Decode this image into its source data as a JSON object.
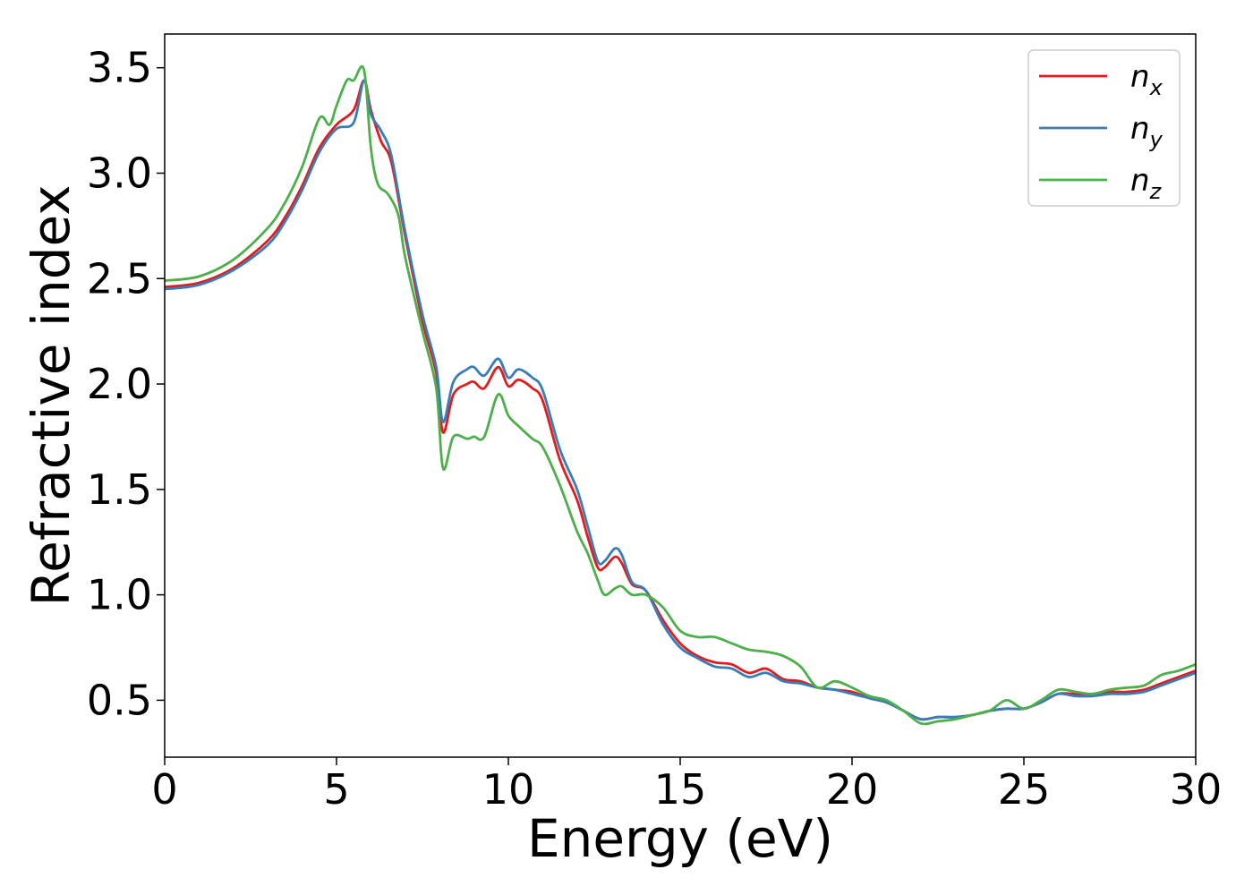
{
  "chart_data": {
    "type": "line",
    "title": "",
    "xlabel": "Energy (eV)",
    "ylabel": "Refractive index",
    "xlim": [
      0,
      30
    ],
    "ylim": [
      0.23,
      3.66
    ],
    "xticks": [
      0,
      5,
      10,
      15,
      20,
      25,
      30
    ],
    "xtick_labels": [
      "0",
      "5",
      "10",
      "15",
      "20",
      "25",
      "30"
    ],
    "yticks": [
      0.5,
      1.0,
      1.5,
      2.0,
      2.5,
      3.0,
      3.5
    ],
    "ytick_labels": [
      "0.5",
      "1.0",
      "1.5",
      "2.0",
      "2.5",
      "3.0",
      "3.5"
    ],
    "grid": false,
    "legend": {
      "placement": "top-right"
    },
    "series": [
      {
        "name": "n_x",
        "label_main": "n",
        "label_sub": "x",
        "color": "#e41a1c",
        "x": [
          0,
          1,
          2,
          3,
          3.5,
          4,
          4.5,
          5,
          5.5,
          5.8,
          6.0,
          6.3,
          6.6,
          7.0,
          7.5,
          7.9,
          8.1,
          8.4,
          8.8,
          9.0,
          9.3,
          9.7,
          10.0,
          10.3,
          10.7,
          11.0,
          11.5,
          12.0,
          12.3,
          12.6,
          12.8,
          13.1,
          13.3,
          13.6,
          14.0,
          14.5,
          15.0,
          15.5,
          16.0,
          16.5,
          17.0,
          17.5,
          18.0,
          18.5,
          19.0,
          19.5,
          20.0,
          20.5,
          21.0,
          21.5,
          22.0,
          22.5,
          23.0,
          23.5,
          24.0,
          24.5,
          25.0,
          25.5,
          26.0,
          26.5,
          27.0,
          27.5,
          28.0,
          28.5,
          29.0,
          29.5,
          30.0
        ],
        "y": [
          2.46,
          2.48,
          2.55,
          2.68,
          2.79,
          2.94,
          3.12,
          3.23,
          3.3,
          3.44,
          3.3,
          3.15,
          3.05,
          2.7,
          2.3,
          2.05,
          1.77,
          1.95,
          2.0,
          2.01,
          1.98,
          2.08,
          1.99,
          2.02,
          1.98,
          1.92,
          1.64,
          1.45,
          1.28,
          1.13,
          1.13,
          1.18,
          1.15,
          1.05,
          1.02,
          0.88,
          0.77,
          0.71,
          0.68,
          0.67,
          0.63,
          0.65,
          0.6,
          0.59,
          0.56,
          0.55,
          0.54,
          0.51,
          0.49,
          0.45,
          0.41,
          0.42,
          0.42,
          0.43,
          0.45,
          0.46,
          0.46,
          0.49,
          0.53,
          0.53,
          0.53,
          0.54,
          0.54,
          0.55,
          0.58,
          0.61,
          0.64
        ]
      },
      {
        "name": "n_y",
        "label_main": "n",
        "label_sub": "y",
        "color": "#377eb8",
        "x": [
          0,
          1,
          2,
          3,
          3.5,
          4,
          4.5,
          5,
          5.5,
          5.8,
          6.0,
          6.3,
          6.6,
          7.0,
          7.5,
          7.9,
          8.1,
          8.4,
          8.8,
          9.0,
          9.3,
          9.7,
          10.0,
          10.3,
          10.7,
          11.0,
          11.5,
          12.0,
          12.3,
          12.6,
          12.8,
          13.1,
          13.3,
          13.6,
          14.0,
          14.5,
          15.0,
          15.5,
          16.0,
          16.5,
          17.0,
          17.5,
          18.0,
          18.5,
          19.0,
          19.5,
          20.0,
          20.5,
          21.0,
          21.5,
          22.0,
          22.5,
          23.0,
          23.5,
          24.0,
          24.5,
          25.0,
          25.5,
          26.0,
          26.5,
          27.0,
          27.5,
          28.0,
          28.5,
          29.0,
          29.5,
          30.0
        ],
        "y": [
          2.45,
          2.47,
          2.54,
          2.66,
          2.77,
          2.92,
          3.1,
          3.21,
          3.24,
          3.44,
          3.28,
          3.2,
          3.08,
          2.72,
          2.33,
          2.08,
          1.82,
          2.01,
          2.07,
          2.08,
          2.04,
          2.12,
          2.03,
          2.07,
          2.03,
          1.97,
          1.69,
          1.5,
          1.33,
          1.16,
          1.16,
          1.22,
          1.19,
          1.06,
          1.02,
          0.86,
          0.75,
          0.7,
          0.66,
          0.65,
          0.61,
          0.63,
          0.59,
          0.58,
          0.56,
          0.55,
          0.53,
          0.51,
          0.49,
          0.45,
          0.41,
          0.42,
          0.42,
          0.43,
          0.45,
          0.46,
          0.46,
          0.49,
          0.53,
          0.52,
          0.52,
          0.53,
          0.53,
          0.54,
          0.57,
          0.6,
          0.63
        ]
      },
      {
        "name": "n_z",
        "label_main": "n",
        "label_sub": "z",
        "color": "#4daf4a",
        "x": [
          0,
          1,
          2,
          3,
          3.5,
          4,
          4.5,
          4.8,
          5.0,
          5.3,
          5.5,
          5.8,
          6.0,
          6.2,
          6.5,
          6.8,
          7.0,
          7.5,
          7.9,
          8.1,
          8.4,
          8.8,
          9.0,
          9.3,
          9.7,
          10.0,
          10.3,
          10.7,
          11.0,
          11.5,
          12.0,
          12.3,
          12.6,
          12.8,
          13.1,
          13.3,
          13.6,
          14.0,
          14.5,
          15.0,
          15.5,
          16.0,
          16.5,
          17.0,
          17.5,
          18.0,
          18.5,
          19.0,
          19.5,
          20.0,
          20.5,
          21.0,
          21.5,
          22.0,
          22.5,
          23.0,
          23.5,
          24.0,
          24.5,
          25.0,
          25.5,
          26.0,
          26.5,
          27.0,
          27.5,
          28.0,
          28.5,
          29.0,
          29.5,
          30.0
        ],
        "y": [
          2.49,
          2.51,
          2.59,
          2.74,
          2.86,
          3.03,
          3.26,
          3.23,
          3.32,
          3.44,
          3.44,
          3.49,
          3.12,
          2.95,
          2.9,
          2.8,
          2.6,
          2.25,
          1.98,
          1.6,
          1.75,
          1.74,
          1.75,
          1.75,
          1.95,
          1.85,
          1.8,
          1.74,
          1.7,
          1.52,
          1.3,
          1.2,
          1.07,
          1.0,
          1.03,
          1.04,
          1.0,
          1.0,
          0.94,
          0.83,
          0.8,
          0.8,
          0.77,
          0.74,
          0.73,
          0.71,
          0.66,
          0.56,
          0.59,
          0.56,
          0.52,
          0.5,
          0.45,
          0.39,
          0.4,
          0.41,
          0.43,
          0.45,
          0.5,
          0.46,
          0.5,
          0.55,
          0.54,
          0.53,
          0.55,
          0.56,
          0.57,
          0.62,
          0.64,
          0.67
        ]
      }
    ]
  }
}
